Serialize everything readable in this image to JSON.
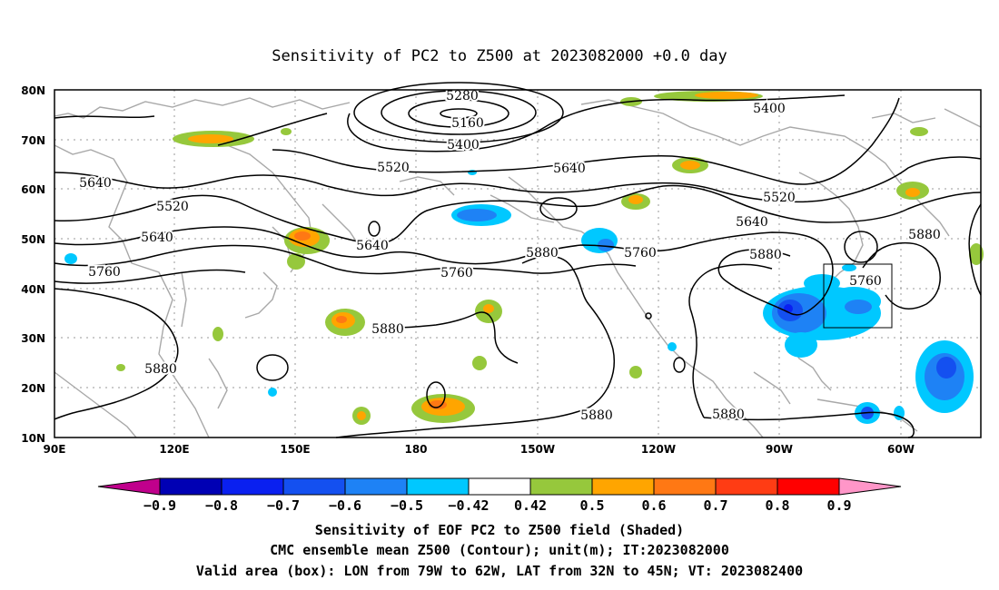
{
  "title": "Sensitivity of PC2 to Z500 at 2023082000 +0.0 day",
  "lat_labels": [
    "80N",
    "70N",
    "60N",
    "50N",
    "40N",
    "30N",
    "20N",
    "10N"
  ],
  "lon_labels": [
    "90E",
    "120E",
    "150E",
    "180",
    "150W",
    "120W",
    "90W",
    "60W"
  ],
  "colorbar": {
    "labels": [
      "-0.9",
      "-0.8",
      "-0.7",
      "-0.6",
      "-0.5",
      "-0.42",
      "0.42",
      "0.5",
      "0.6",
      "0.7",
      "0.8",
      "0.9"
    ],
    "colors": [
      "#c0008c",
      "#0000b4",
      "#0a20f0",
      "#1450f0",
      "#1e82f5",
      "#00c8ff",
      "#ffffff",
      "#96c83c",
      "#ffa500",
      "#ff7814",
      "#ff3c14",
      "#ff0000",
      "#ff96c8"
    ]
  },
  "contour_labels": [
    "5280",
    "5160",
    "5400",
    "5520",
    "5640",
    "5400",
    "5640",
    "5520",
    "5520",
    "5640",
    "5640",
    "5760",
    "5640",
    "5760",
    "5760",
    "5880",
    "5880",
    "5880",
    "5880",
    "5880",
    "5760",
    "5880",
    "5880"
  ],
  "captions": [
    "Sensitivity of EOF PC2 to Z500 field (Shaded)",
    "CMC ensemble mean Z500 (Contour); unit(m); IT:2023082000",
    "Valid area (box): LON from 79W to 62W, LAT from 32N to 45N; VT: 2023082400"
  ]
}
